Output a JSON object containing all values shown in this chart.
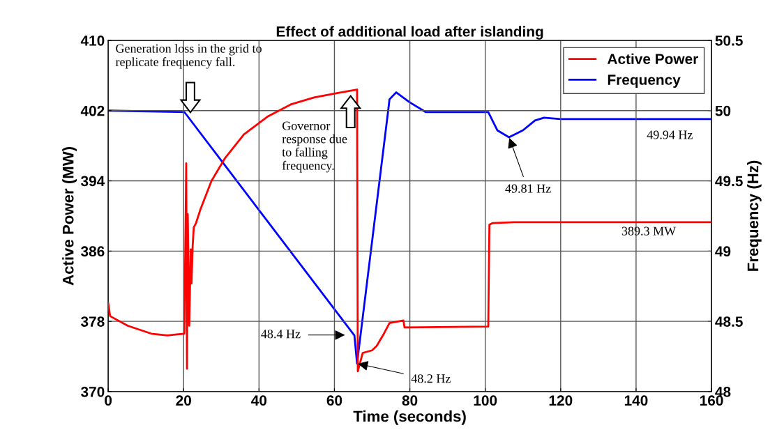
{
  "chart_data": {
    "type": "line",
    "title": "Effect of additional load after islanding",
    "xlabel": "Time (seconds)",
    "ylabel": "Active Power (MW)",
    "y2label": "Frequency (Hz)",
    "xlim": [
      0,
      160
    ],
    "xticks": [
      0,
      20,
      40,
      60,
      80,
      100,
      120,
      140,
      160
    ],
    "ylim": [
      370,
      410
    ],
    "yticks": [
      370,
      378,
      386,
      394,
      402,
      410
    ],
    "y2lim": [
      48,
      50.5
    ],
    "y2ticks": [
      48,
      48.5,
      49,
      49.5,
      50,
      50.5
    ],
    "grid": true,
    "legend": "top right",
    "line_style": "solid",
    "marker": "none",
    "series": [
      {
        "name": "Active Power",
        "color": "#ff0000",
        "x": [
          0,
          0.5,
          5.2,
          11.4,
          15.7,
          20.2,
          20.7,
          20.9,
          21.1,
          21.5,
          21.9,
          22.1,
          22.4,
          22.7,
          23.3,
          24.5,
          27.4,
          31,
          36,
          42.2,
          48.4,
          54.6,
          60.7,
          66,
          66.2,
          67.5,
          70,
          71.2,
          73,
          74.6,
          78.3,
          78.6,
          100.8,
          101.1,
          102,
          107.6,
          160
        ],
        "values": [
          380.1,
          378.6,
          377.5,
          376.6,
          376.4,
          376.6,
          396,
          372.6,
          390.2,
          377.5,
          386.2,
          382.3,
          386.6,
          388.7,
          389.2,
          390.8,
          394,
          396.6,
          399.3,
          401.3,
          402.7,
          403.5,
          404,
          404.4,
          372.3,
          374.4,
          374.7,
          375.2,
          376.5,
          377.8,
          378.1,
          377.3,
          377.4,
          389,
          389.2,
          389.3,
          389.3
        ]
      },
      {
        "name": "Frequency",
        "color": "#0000ff",
        "axis": "y2",
        "x": [
          0,
          20.2,
          65.3,
          66,
          74.3,
          74.6,
          76.4,
          79.9,
          84.2,
          89,
          100.8,
          103.2,
          106.3,
          110,
          113.2,
          115.6,
          119.9,
          160
        ],
        "values": [
          50,
          49.99,
          48.4,
          48.2,
          50.01,
          50.08,
          50.13,
          50.06,
          49.99,
          49.99,
          49.99,
          49.86,
          49.81,
          49.86,
          49.93,
          49.95,
          49.94,
          49.94
        ]
      }
    ],
    "annotations": [
      "Generation loss in the grid to\nreplicate frequency fall.",
      "Governor\nresponse due\nto falling\nfrequency.",
      "48.4 Hz",
      {
        "text": "48.2 Hz",
        "x": 66,
        "y": 373.2
      },
      {
        "text": "49.81 Hz",
        "x": 106.3,
        "y": 399
      },
      "49.94 Hz",
      "389.3 MW"
    ]
  }
}
